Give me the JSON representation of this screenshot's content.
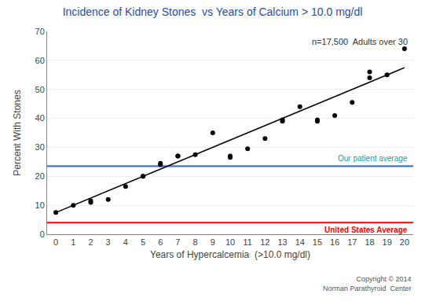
{
  "chart_data": {
    "type": "scatter",
    "title": "Incidence of Kidney Stones  vs Years of Calcium > 10.0 mg/dl",
    "title_color": "#1f4eaa",
    "xlabel": "Years of Hypercalcemia  (>10.0 mg/dl)",
    "ylabel": "Percent With Stones",
    "annotations": [
      "n=17,500  Adults over 30"
    ],
    "copyright": "Copyright © 2014\nNorman Parathyroid  Center",
    "series": [
      {
        "type": "scatter",
        "marker": "circle",
        "color": "#000000",
        "x": [
          0,
          1,
          2,
          2,
          3,
          4,
          5,
          5,
          6,
          6,
          7,
          7,
          8,
          9,
          10,
          10,
          11,
          12,
          13,
          13,
          14,
          15,
          15,
          16,
          17,
          18,
          18,
          19,
          20
        ],
        "values": [
          7.5,
          10,
          11,
          11.5,
          12,
          16.5,
          20,
          20,
          24,
          24.5,
          27,
          27,
          27.5,
          35,
          26.5,
          27,
          29.5,
          33,
          39,
          39.5,
          44,
          39.5,
          39,
          41,
          45.5,
          54,
          56,
          55,
          64
        ]
      },
      {
        "type": "line",
        "line_style": "solid",
        "color": "#000000",
        "x": [
          0,
          20
        ],
        "values": [
          7.5,
          57.5
        ]
      }
    ],
    "hlines": [
      {
        "value": 23.5,
        "color": "#4472c4",
        "label": "Our patient average",
        "label_color": "#17a0a0",
        "label_side": "above"
      },
      {
        "value": 4.0,
        "color": "#ff0000",
        "label": "United States Average",
        "label_color": "#ff0000",
        "label_side": "below"
      }
    ],
    "xlim": [
      -0.5,
      20.5
    ],
    "ylim": [
      0,
      70
    ],
    "xticks": [
      0,
      1,
      2,
      3,
      4,
      5,
      6,
      7,
      8,
      9,
      10,
      11,
      12,
      13,
      14,
      15,
      16,
      17,
      18,
      19,
      20
    ],
    "yticks": [
      0,
      10,
      20,
      30,
      40,
      50,
      60,
      70
    ],
    "grid": "y"
  }
}
